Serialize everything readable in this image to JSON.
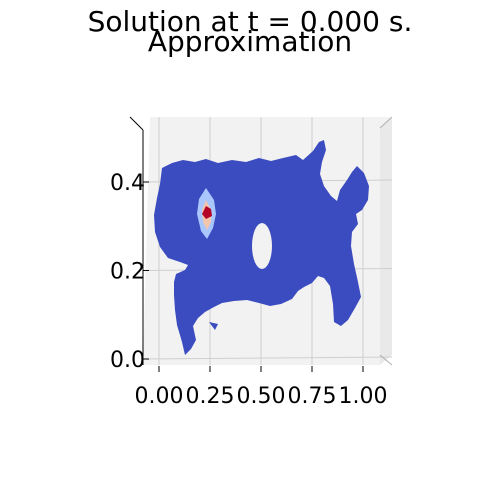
{
  "figure": {
    "suptitle": "Solution at t = 0.000 s.",
    "subtitle": "Approximation"
  },
  "chart_data": {
    "type": "heatmap",
    "title": "Approximation",
    "view": "3d-surface-top-view",
    "colormap": "coolwarm",
    "colors": {
      "background_level": "#3b4cc0",
      "mid_level": "#aac7fd",
      "high_level": "#f4c5ad",
      "peak_level": "#b40426",
      "pane": "#f2f2f2",
      "grid": "#cfcfcf"
    },
    "x_ticks": [
      "0.00",
      "0.25",
      "0.50",
      "0.75",
      "1.00"
    ],
    "y_ticks": [
      "0.0",
      "0.2",
      "0.4"
    ],
    "xlim": [
      -0.05,
      1.05
    ],
    "ylim": [
      -0.02,
      0.5
    ],
    "peak": {
      "x": 0.22,
      "y": 0.31
    },
    "hole": {
      "x": 0.47,
      "y": 0.25
    },
    "grid": true
  }
}
